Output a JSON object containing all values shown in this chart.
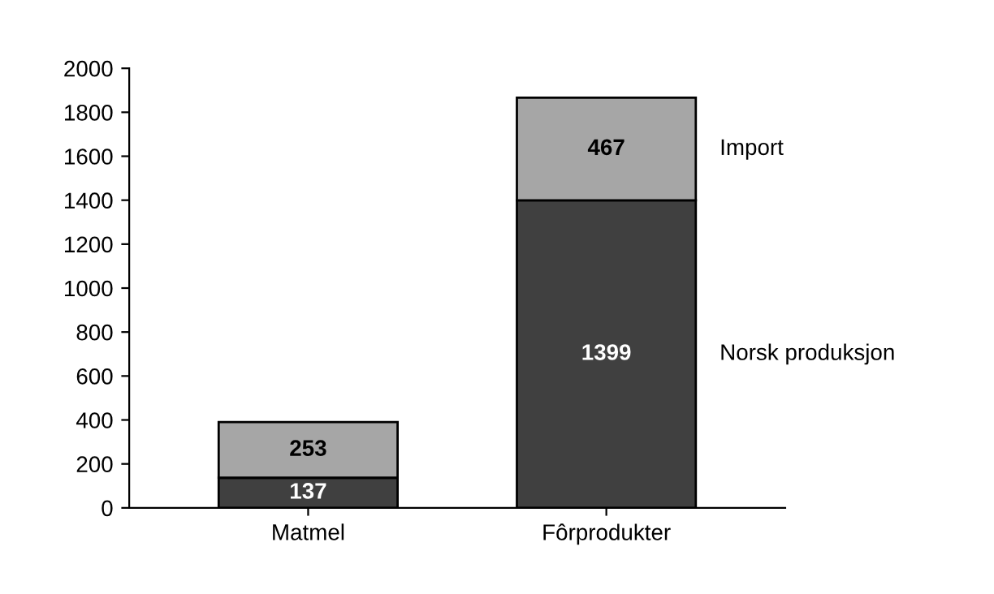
{
  "chart_data": {
    "type": "bar",
    "stacked": true,
    "categories": [
      "Matmel",
      "Fôrprodukter"
    ],
    "series": [
      {
        "name": "Norsk produksjon",
        "color": "#404040",
        "values": [
          137,
          1399
        ]
      },
      {
        "name": "Import",
        "color": "#a6a6a6",
        "values": [
          253,
          467
        ]
      }
    ],
    "ylim": [
      0,
      2000
    ],
    "yticks": [
      0,
      200,
      400,
      600,
      800,
      1000,
      1200,
      1400,
      1600,
      1800,
      2000
    ],
    "grid": false,
    "legend": false,
    "data_labels": true
  }
}
